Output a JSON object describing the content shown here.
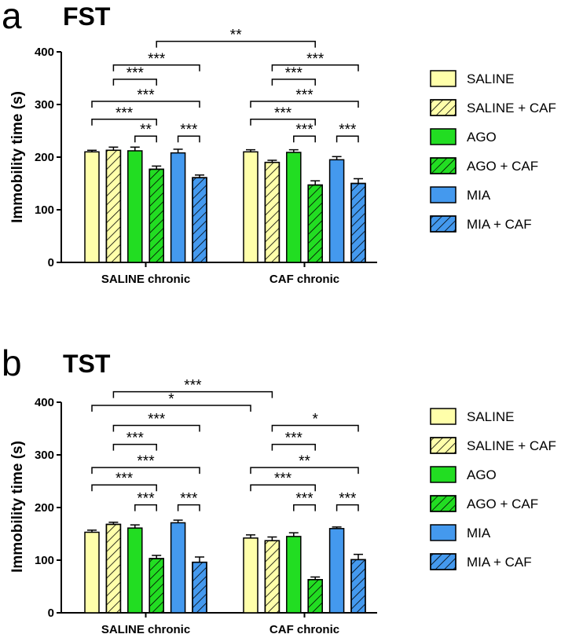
{
  "legend": [
    {
      "label": "SALINE",
      "color": "#ffffaa",
      "hatch": false
    },
    {
      "label": "SALINE + CAF",
      "color": "#ffffaa",
      "hatch": true
    },
    {
      "label": "AGO",
      "color": "#22dd22",
      "hatch": false
    },
    {
      "label": "AGO + CAF",
      "color": "#22dd22",
      "hatch": true
    },
    {
      "label": "MIA",
      "color": "#4499ee",
      "hatch": false
    },
    {
      "label": "MIA + CAF",
      "color": "#4499ee",
      "hatch": true
    }
  ],
  "chart_data": [
    {
      "type": "bar",
      "panel": "a",
      "title": "FST",
      "ylabel": "Immobility time (s)",
      "ylim": [
        0,
        400
      ],
      "yticks": [
        0,
        100,
        200,
        300,
        400
      ],
      "categories": [
        "SALINE chronic",
        "CAF chronic"
      ],
      "series": [
        {
          "name": "SALINE",
          "values": [
            210,
            210
          ],
          "errors": [
            3,
            4
          ]
        },
        {
          "name": "SALINE + CAF",
          "values": [
            213,
            190
          ],
          "errors": [
            6,
            4
          ]
        },
        {
          "name": "AGO",
          "values": [
            212,
            209
          ],
          "errors": [
            7,
            5
          ]
        },
        {
          "name": "AGO + CAF",
          "values": [
            177,
            147
          ],
          "errors": [
            6,
            8
          ]
        },
        {
          "name": "MIA",
          "values": [
            208,
            195
          ],
          "errors": [
            7,
            6
          ]
        },
        {
          "name": "MIA + CAF",
          "values": [
            161,
            150
          ],
          "errors": [
            5,
            9
          ]
        }
      ],
      "significance": [
        {
          "a": [
            0,
            3
          ],
          "b": [
            1,
            3
          ],
          "label": "**",
          "y": 420
        },
        {
          "a": [
            0,
            1
          ],
          "b": [
            0,
            5
          ],
          "label": "***",
          "y": 375
        },
        {
          "a": [
            0,
            1
          ],
          "b": [
            0,
            3
          ],
          "label": "***",
          "y": 348
        },
        {
          "a": [
            0,
            0
          ],
          "b": [
            0,
            5
          ],
          "label": "***",
          "y": 306
        },
        {
          "a": [
            0,
            0
          ],
          "b": [
            0,
            3
          ],
          "label": "***",
          "y": 272
        },
        {
          "a": [
            0,
            2
          ],
          "b": [
            0,
            3
          ],
          "label": "**",
          "y": 240
        },
        {
          "a": [
            0,
            4
          ],
          "b": [
            0,
            5
          ],
          "label": "***",
          "y": 240
        },
        {
          "a": [
            1,
            1
          ],
          "b": [
            1,
            5
          ],
          "label": "***",
          "y": 375
        },
        {
          "a": [
            1,
            1
          ],
          "b": [
            1,
            3
          ],
          "label": "***",
          "y": 348
        },
        {
          "a": [
            1,
            0
          ],
          "b": [
            1,
            5
          ],
          "label": "***",
          "y": 306
        },
        {
          "a": [
            1,
            0
          ],
          "b": [
            1,
            3
          ],
          "label": "***",
          "y": 272
        },
        {
          "a": [
            1,
            2
          ],
          "b": [
            1,
            3
          ],
          "label": "***",
          "y": 240
        },
        {
          "a": [
            1,
            4
          ],
          "b": [
            1,
            5
          ],
          "label": "***",
          "y": 240
        }
      ]
    },
    {
      "type": "bar",
      "panel": "b",
      "title": "TST",
      "ylabel": "Immobility time (s)",
      "ylim": [
        0,
        400
      ],
      "yticks": [
        0,
        100,
        200,
        300,
        400
      ],
      "categories": [
        "SALINE chronic",
        "CAF chronic"
      ],
      "series": [
        {
          "name": "SALINE",
          "values": [
            153,
            142
          ],
          "errors": [
            4,
            6
          ]
        },
        {
          "name": "SALINE + CAF",
          "values": [
            168,
            137
          ],
          "errors": [
            4,
            7
          ]
        },
        {
          "name": "AGO",
          "values": [
            161,
            145
          ],
          "errors": [
            6,
            7
          ]
        },
        {
          "name": "AGO + CAF",
          "values": [
            103,
            63
          ],
          "errors": [
            6,
            5
          ]
        },
        {
          "name": "MIA",
          "values": [
            171,
            160
          ],
          "errors": [
            5,
            3
          ]
        },
        {
          "name": "MIA + CAF",
          "values": [
            96,
            101
          ],
          "errors": [
            10,
            10
          ]
        }
      ],
      "significance": [
        {
          "a": [
            0,
            1
          ],
          "b": [
            1,
            1
          ],
          "label": "***",
          "y": 420
        },
        {
          "a": [
            0,
            0
          ],
          "b": [
            1,
            0
          ],
          "label": "*",
          "y": 394
        },
        {
          "a": [
            0,
            1
          ],
          "b": [
            0,
            5
          ],
          "label": "***",
          "y": 356
        },
        {
          "a": [
            0,
            1
          ],
          "b": [
            0,
            3
          ],
          "label": "***",
          "y": 320
        },
        {
          "a": [
            0,
            0
          ],
          "b": [
            0,
            5
          ],
          "label": "***",
          "y": 276
        },
        {
          "a": [
            0,
            0
          ],
          "b": [
            0,
            3
          ],
          "label": "***",
          "y": 243
        },
        {
          "a": [
            0,
            2
          ],
          "b": [
            0,
            3
          ],
          "label": "***",
          "y": 205
        },
        {
          "a": [
            0,
            4
          ],
          "b": [
            0,
            5
          ],
          "label": "***",
          "y": 205
        },
        {
          "a": [
            1,
            1
          ],
          "b": [
            1,
            5
          ],
          "label": "*",
          "y": 356
        },
        {
          "a": [
            1,
            1
          ],
          "b": [
            1,
            3
          ],
          "label": "***",
          "y": 320
        },
        {
          "a": [
            1,
            0
          ],
          "b": [
            1,
            5
          ],
          "label": "**",
          "y": 276
        },
        {
          "a": [
            1,
            0
          ],
          "b": [
            1,
            3
          ],
          "label": "***",
          "y": 243
        },
        {
          "a": [
            1,
            2
          ],
          "b": [
            1,
            3
          ],
          "label": "***",
          "y": 205
        },
        {
          "a": [
            1,
            4
          ],
          "b": [
            1,
            5
          ],
          "label": "***",
          "y": 205
        }
      ]
    }
  ]
}
